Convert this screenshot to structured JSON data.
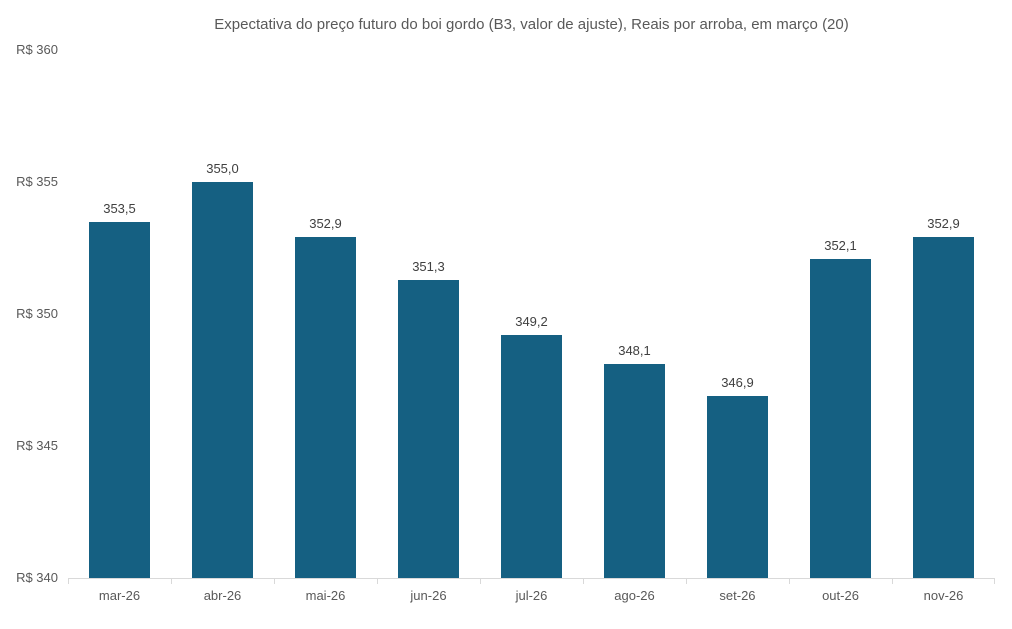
{
  "chart_data": {
    "type": "bar",
    "title": "Expectativa do preço futuro do boi gordo (B3, valor de ajuste), Reais por arroba, em março (20)",
    "categories": [
      "mar-26",
      "abr-26",
      "mai-26",
      "jun-26",
      "jul-26",
      "ago-26",
      "set-26",
      "out-26",
      "nov-26"
    ],
    "values": [
      353.5,
      355.0,
      352.9,
      351.3,
      349.2,
      348.1,
      346.9,
      352.1,
      352.9
    ],
    "value_labels": [
      "353,5",
      "355,0",
      "352,9",
      "351,3",
      "349,2",
      "348,1",
      "346,9",
      "352,1",
      "352,9"
    ],
    "ytick_labels": [
      "R$ 360",
      "R$ 355",
      "R$ 350",
      "R$ 345",
      "R$ 340"
    ],
    "ylim": [
      340,
      360
    ],
    "xlabel": "",
    "ylabel": "",
    "grid": false,
    "legend": "none",
    "colors": {
      "bar": "#156082",
      "axis_line": "#d9d9d9",
      "axis_text": "#595959",
      "data_label_text": "#404040",
      "title_text": "#595959"
    }
  }
}
